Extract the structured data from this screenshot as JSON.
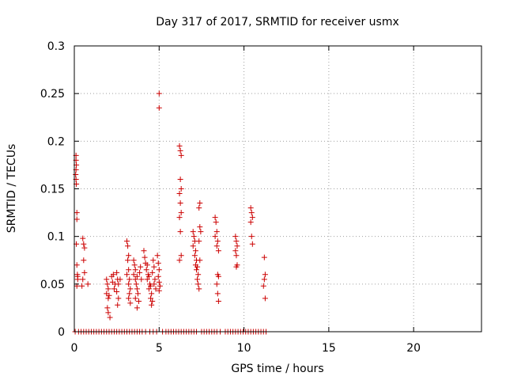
{
  "chart_data": {
    "type": "scatter",
    "title": "Day 317 of 2017, SRMTID for receiver usmx",
    "xlabel": "GPS time / hours",
    "ylabel": "SRMTID / TECUs",
    "xlim": [
      0,
      24
    ],
    "ylim": [
      0,
      0.3
    ],
    "xticks": [
      0,
      5,
      10,
      15,
      20
    ],
    "yticks": [
      0,
      0.05,
      0.1,
      0.15,
      0.2,
      0.25,
      0.3
    ],
    "xtick_labels": [
      "0",
      "5",
      "10",
      "15",
      "20"
    ],
    "ytick_labels": [
      "0",
      "0.05",
      "0.1",
      "0.15",
      "0.2",
      "0.25",
      "0.3"
    ],
    "grid": true,
    "marker": "plus",
    "color": "#cc0000",
    "points": [
      [
        0.1,
        0.185
      ],
      [
        0.1,
        0.18
      ],
      [
        0.12,
        0.175
      ],
      [
        0.1,
        0.17
      ],
      [
        0.08,
        0.165
      ],
      [
        0.1,
        0.16
      ],
      [
        0.12,
        0.155
      ],
      [
        0.15,
        0.125
      ],
      [
        0.15,
        0.118
      ],
      [
        0.12,
        0.092
      ],
      [
        0.15,
        0.07
      ],
      [
        0.18,
        0.06
      ],
      [
        0.2,
        0.058
      ],
      [
        0.2,
        0.055
      ],
      [
        0.15,
        0.048
      ],
      [
        0.5,
        0.098
      ],
      [
        0.55,
        0.092
      ],
      [
        0.6,
        0.088
      ],
      [
        0.55,
        0.075
      ],
      [
        0.6,
        0.062
      ],
      [
        0.5,
        0.055
      ],
      [
        0.45,
        0.048
      ],
      [
        0.8,
        0.05
      ],
      [
        1.9,
        0.055
      ],
      [
        1.95,
        0.05
      ],
      [
        2.0,
        0.045
      ],
      [
        1.9,
        0.04
      ],
      [
        2.05,
        0.038
      ],
      [
        2.0,
        0.035
      ],
      [
        1.95,
        0.025
      ],
      [
        2.0,
        0.02
      ],
      [
        2.1,
        0.015
      ],
      [
        2.2,
        0.058
      ],
      [
        2.3,
        0.06
      ],
      [
        2.25,
        0.052
      ],
      [
        2.4,
        0.05
      ],
      [
        2.35,
        0.045
      ],
      [
        2.5,
        0.062
      ],
      [
        2.55,
        0.055
      ],
      [
        2.6,
        0.05
      ],
      [
        2.5,
        0.042
      ],
      [
        2.6,
        0.035
      ],
      [
        2.55,
        0.028
      ],
      [
        2.7,
        0.055
      ],
      [
        3.1,
        0.095
      ],
      [
        3.15,
        0.09
      ],
      [
        3.2,
        0.08
      ],
      [
        3.15,
        0.075
      ],
      [
        3.2,
        0.065
      ],
      [
        3.1,
        0.06
      ],
      [
        3.25,
        0.055
      ],
      [
        3.2,
        0.05
      ],
      [
        3.3,
        0.045
      ],
      [
        3.25,
        0.04
      ],
      [
        3.2,
        0.035
      ],
      [
        3.3,
        0.03
      ],
      [
        3.5,
        0.075
      ],
      [
        3.55,
        0.07
      ],
      [
        3.6,
        0.065
      ],
      [
        3.5,
        0.06
      ],
      [
        3.7,
        0.058
      ],
      [
        3.6,
        0.055
      ],
      [
        3.65,
        0.05
      ],
      [
        3.7,
        0.045
      ],
      [
        3.75,
        0.04
      ],
      [
        3.6,
        0.035
      ],
      [
        3.8,
        0.032
      ],
      [
        3.7,
        0.025
      ],
      [
        3.9,
        0.068
      ],
      [
        3.85,
        0.062
      ],
      [
        3.95,
        0.055
      ],
      [
        4.1,
        0.085
      ],
      [
        4.15,
        0.078
      ],
      [
        4.2,
        0.072
      ],
      [
        4.3,
        0.07
      ],
      [
        4.25,
        0.065
      ],
      [
        4.35,
        0.06
      ],
      [
        4.4,
        0.058
      ],
      [
        4.3,
        0.055
      ],
      [
        4.45,
        0.05
      ],
      [
        4.5,
        0.048
      ],
      [
        4.4,
        0.045
      ],
      [
        4.55,
        0.04
      ],
      [
        4.5,
        0.035
      ],
      [
        4.6,
        0.032
      ],
      [
        4.55,
        0.028
      ],
      [
        4.65,
        0.075
      ],
      [
        4.7,
        0.068
      ],
      [
        4.6,
        0.062
      ],
      [
        4.75,
        0.055
      ],
      [
        4.7,
        0.05
      ],
      [
        4.8,
        0.045
      ],
      [
        4.9,
        0.08
      ],
      [
        4.95,
        0.072
      ],
      [
        5.0,
        0.065
      ],
      [
        4.95,
        0.058
      ],
      [
        5.0,
        0.052
      ],
      [
        5.05,
        0.048
      ],
      [
        5.0,
        0.043
      ],
      [
        5.0,
        0.25
      ],
      [
        5.0,
        0.235
      ],
      [
        6.2,
        0.195
      ],
      [
        6.25,
        0.19
      ],
      [
        6.3,
        0.185
      ],
      [
        6.25,
        0.16
      ],
      [
        6.3,
        0.15
      ],
      [
        6.2,
        0.145
      ],
      [
        6.25,
        0.135
      ],
      [
        6.3,
        0.125
      ],
      [
        6.2,
        0.12
      ],
      [
        6.25,
        0.105
      ],
      [
        6.3,
        0.08
      ],
      [
        6.2,
        0.075
      ],
      [
        7.0,
        0.105
      ],
      [
        7.05,
        0.1
      ],
      [
        7.1,
        0.095
      ],
      [
        7.0,
        0.09
      ],
      [
        7.15,
        0.085
      ],
      [
        7.1,
        0.08
      ],
      [
        7.2,
        0.075
      ],
      [
        7.15,
        0.07
      ],
      [
        7.25,
        0.068
      ],
      [
        7.2,
        0.065
      ],
      [
        7.3,
        0.06
      ],
      [
        7.25,
        0.055
      ],
      [
        7.3,
        0.05
      ],
      [
        7.35,
        0.045
      ],
      [
        7.4,
        0.135
      ],
      [
        7.35,
        0.13
      ],
      [
        7.4,
        0.11
      ],
      [
        7.45,
        0.105
      ],
      [
        7.35,
        0.095
      ],
      [
        7.4,
        0.075
      ],
      [
        8.3,
        0.12
      ],
      [
        8.35,
        0.115
      ],
      [
        8.4,
        0.105
      ],
      [
        8.3,
        0.1
      ],
      [
        8.45,
        0.095
      ],
      [
        8.4,
        0.09
      ],
      [
        8.5,
        0.085
      ],
      [
        8.45,
        0.06
      ],
      [
        8.5,
        0.058
      ],
      [
        8.4,
        0.05
      ],
      [
        8.45,
        0.04
      ],
      [
        8.5,
        0.032
      ],
      [
        9.5,
        0.1
      ],
      [
        9.55,
        0.095
      ],
      [
        9.6,
        0.09
      ],
      [
        9.5,
        0.085
      ],
      [
        9.55,
        0.08
      ],
      [
        9.6,
        0.07
      ],
      [
        9.55,
        0.068
      ],
      [
        10.4,
        0.13
      ],
      [
        10.45,
        0.125
      ],
      [
        10.5,
        0.12
      ],
      [
        10.4,
        0.115
      ],
      [
        10.45,
        0.1
      ],
      [
        10.5,
        0.092
      ],
      [
        11.2,
        0.078
      ],
      [
        11.25,
        0.06
      ],
      [
        11.2,
        0.055
      ],
      [
        11.15,
        0.048
      ],
      [
        11.25,
        0.035
      ],
      [
        0.05,
        0
      ],
      [
        0.25,
        0
      ],
      [
        0.4,
        0
      ],
      [
        0.55,
        0
      ],
      [
        0.7,
        0
      ],
      [
        0.85,
        0
      ],
      [
        1.0,
        0
      ],
      [
        1.15,
        0
      ],
      [
        1.3,
        0
      ],
      [
        1.45,
        0
      ],
      [
        1.6,
        0
      ],
      [
        1.75,
        0
      ],
      [
        1.9,
        0
      ],
      [
        2.05,
        0
      ],
      [
        2.2,
        0
      ],
      [
        2.35,
        0
      ],
      [
        2.5,
        0
      ],
      [
        2.65,
        0
      ],
      [
        2.8,
        0
      ],
      [
        2.95,
        0
      ],
      [
        3.1,
        0
      ],
      [
        3.25,
        0
      ],
      [
        3.4,
        0
      ],
      [
        3.55,
        0
      ],
      [
        3.7,
        0
      ],
      [
        3.85,
        0
      ],
      [
        4.0,
        0
      ],
      [
        4.2,
        0
      ],
      [
        4.45,
        0
      ],
      [
        4.65,
        0
      ],
      [
        4.85,
        0
      ],
      [
        5.2,
        0
      ],
      [
        5.4,
        0
      ],
      [
        5.55,
        0
      ],
      [
        5.7,
        0
      ],
      [
        5.85,
        0
      ],
      [
        6.0,
        0
      ],
      [
        6.15,
        0
      ],
      [
        6.3,
        0
      ],
      [
        6.45,
        0
      ],
      [
        6.6,
        0
      ],
      [
        6.75,
        0
      ],
      [
        6.9,
        0
      ],
      [
        7.05,
        0
      ],
      [
        7.2,
        0
      ],
      [
        7.5,
        0
      ],
      [
        7.65,
        0
      ],
      [
        7.8,
        0
      ],
      [
        7.95,
        0
      ],
      [
        8.1,
        0
      ],
      [
        8.25,
        0
      ],
      [
        8.4,
        0
      ],
      [
        8.6,
        0
      ],
      [
        8.9,
        0
      ],
      [
        9.05,
        0
      ],
      [
        9.2,
        0
      ],
      [
        9.35,
        0
      ],
      [
        9.5,
        0
      ],
      [
        9.65,
        0
      ],
      [
        9.8,
        0
      ],
      [
        9.95,
        0
      ],
      [
        10.1,
        0
      ],
      [
        10.25,
        0
      ],
      [
        10.4,
        0
      ],
      [
        10.55,
        0
      ],
      [
        10.7,
        0
      ],
      [
        10.85,
        0
      ],
      [
        11.0,
        0
      ],
      [
        11.15,
        0
      ],
      [
        11.3,
        0
      ]
    ]
  }
}
